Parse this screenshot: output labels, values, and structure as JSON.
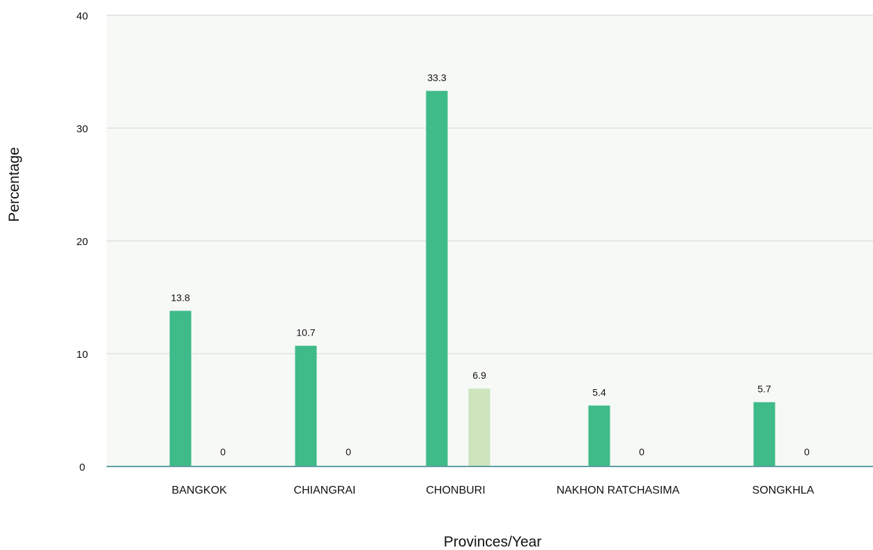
{
  "chart_data": {
    "type": "bar",
    "title": "",
    "xlabel": "Provinces/Year",
    "ylabel": "Percentage",
    "categories": [
      "BANGKOK",
      "CHIANGRAI",
      "CHONBURI",
      "NAKHON RATCHASIMA",
      "SONGKHLA"
    ],
    "series": [
      {
        "values": [
          13.8,
          10.7,
          33.3,
          5.4,
          5.7
        ],
        "color": "#3fba89"
      },
      {
        "values": [
          0,
          0,
          6.9,
          0,
          0
        ],
        "color": "#cde4bd"
      }
    ],
    "ylim": [
      0,
      40
    ],
    "yticks": [
      0,
      10,
      20,
      30,
      40
    ],
    "grid": true,
    "colors": {
      "plot_background": "#f7f9f6",
      "gridline": "#e4e8e3",
      "baseline": "#5f9ea0"
    }
  }
}
